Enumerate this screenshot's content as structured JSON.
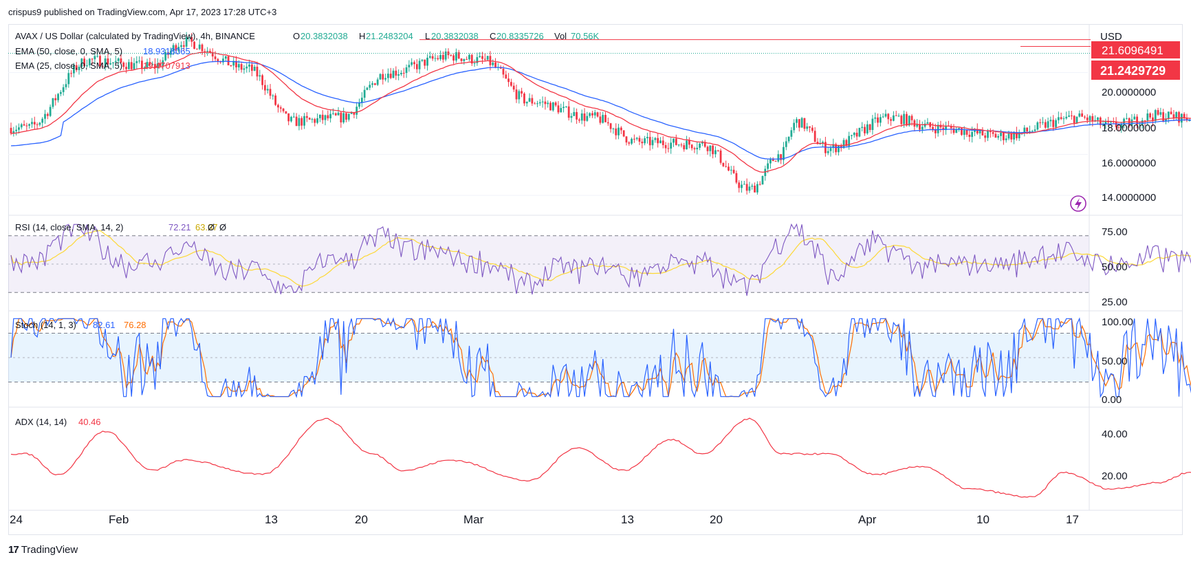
{
  "attribution": "crispus9 published on TradingView.com, Apr 17, 2023 17:28 UTC+3",
  "brand": {
    "logo": "17",
    "name": "TradingView"
  },
  "colors": {
    "up": "#22ab94",
    "down": "#f23645",
    "ema50": "#2962ff",
    "ema25": "#f23645",
    "rsi": "#7e57c2",
    "rsi_ma": "#fdd835",
    "stoch_k": "#2962ff",
    "stoch_d": "#ff6d00",
    "adx": "#f23645",
    "grid": "#f0f3fa"
  },
  "chart_data": [
    {
      "type": "candlestick",
      "title": "AVAX / US Dollar (calculated by TradingView), 4h, BINANCE",
      "ohlc": {
        "O_label": "O",
        "O": "20.3832038",
        "H_label": "H",
        "H": "21.2483204",
        "L_label": "L",
        "L": "20.3832038",
        "C_label": "C",
        "C": "20.8335726",
        "Vol_label": "Vol",
        "Vol": "70.56K"
      },
      "currency": "USD",
      "ylim": [
        13.2,
        22.2
      ],
      "yticks": [
        "20.0000000",
        "18.0000000",
        "16.0000000",
        "14.0000000"
      ],
      "price_labels": {
        "high_line": "21.6096491",
        "last": "21.2429729"
      },
      "x_ticks": [
        "24",
        "Feb",
        "13",
        "20",
        "Mar",
        "13",
        "20",
        "Apr",
        "10",
        "17"
      ],
      "series": [
        {
          "name": "EMA (50, close, 0, SMA, 5)",
          "value": "18.9318065"
        },
        {
          "name": "EMA (25, close, 0, SMA, 5)",
          "value": "19.4707913"
        }
      ],
      "key_points": [
        {
          "x": "Jan 24",
          "y": 17.3
        },
        {
          "x": "Jan 28",
          "y": 20.6
        },
        {
          "x": "Feb 1",
          "y": 20.3
        },
        {
          "x": "Feb 3",
          "y": 21.5
        },
        {
          "x": "Feb 7",
          "y": 20.2
        },
        {
          "x": "Feb 10",
          "y": 17.6
        },
        {
          "x": "Feb 13",
          "y": 17.8
        },
        {
          "x": "Feb 16",
          "y": 20.0
        },
        {
          "x": "Feb 20",
          "y": 20.8
        },
        {
          "x": "Feb 22",
          "y": 20.6
        },
        {
          "x": "Feb 25",
          "y": 18.6
        },
        {
          "x": "Mar 1",
          "y": 17.8
        },
        {
          "x": "Mar 4",
          "y": 16.6
        },
        {
          "x": "Mar 8",
          "y": 16.5
        },
        {
          "x": "Mar 11",
          "y": 14.3
        },
        {
          "x": "Mar 13",
          "y": 16.0
        },
        {
          "x": "Mar 14",
          "y": 17.6
        },
        {
          "x": "Mar 16",
          "y": 16.3
        },
        {
          "x": "Mar 20",
          "y": 17.8
        },
        {
          "x": "Mar 23",
          "y": 17.3
        },
        {
          "x": "Mar 27",
          "y": 16.9
        },
        {
          "x": "Apr 1",
          "y": 17.8
        },
        {
          "x": "Apr 3",
          "y": 17.4
        },
        {
          "x": "Apr 6",
          "y": 17.9
        },
        {
          "x": "Apr 10",
          "y": 17.6
        },
        {
          "x": "Apr 12",
          "y": 18.6
        },
        {
          "x": "Apr 15",
          "y": 19.6
        },
        {
          "x": "Apr 17",
          "y": 20.9
        }
      ]
    },
    {
      "type": "line",
      "title": "RSI (14, close, SMA, 14, 2)",
      "series": [
        {
          "name": "RSI",
          "value": "72.21"
        },
        {
          "name": "RSI-based MA",
          "value": "63.37"
        }
      ],
      "extra": [
        "Ø",
        "Ø"
      ],
      "ylim": [
        18,
        82
      ],
      "yticks": [
        "75.00",
        "50.00",
        "25.00"
      ],
      "bands": [
        70,
        50,
        30
      ]
    },
    {
      "type": "line",
      "title": "Stoch (14, 1, 3)",
      "series": [
        {
          "name": "%K",
          "value": "82.61"
        },
        {
          "name": "%D",
          "value": "76.28"
        }
      ],
      "ylim": [
        -5,
        105
      ],
      "yticks": [
        "100.00",
        "50.00",
        "0.00"
      ],
      "bands": [
        80,
        50,
        20
      ]
    },
    {
      "type": "line",
      "title": "ADX (14, 14)",
      "series": [
        {
          "name": "ADX",
          "value": "40.46"
        }
      ],
      "ylim": [
        5,
        50
      ],
      "yticks": [
        "40.00",
        "20.00"
      ],
      "key_points": [
        {
          "x": "Jan 24",
          "y": 30
        },
        {
          "x": "Jan 26",
          "y": 20
        },
        {
          "x": "Jan 29",
          "y": 41
        },
        {
          "x": "Feb 1",
          "y": 22
        },
        {
          "x": "Feb 3",
          "y": 27
        },
        {
          "x": "Feb 8",
          "y": 20
        },
        {
          "x": "Feb 12",
          "y": 47
        },
        {
          "x": "Feb 15",
          "y": 30
        },
        {
          "x": "Feb 17",
          "y": 22
        },
        {
          "x": "Feb 20",
          "y": 27
        },
        {
          "x": "Feb 25",
          "y": 17
        },
        {
          "x": "Feb 28",
          "y": 33
        },
        {
          "x": "Mar 3",
          "y": 22
        },
        {
          "x": "Mar 6",
          "y": 37
        },
        {
          "x": "Mar 8",
          "y": 30
        },
        {
          "x": "Mar 11",
          "y": 47
        },
        {
          "x": "Mar 13",
          "y": 30
        },
        {
          "x": "Mar 16",
          "y": 30
        },
        {
          "x": "Mar 19",
          "y": 20
        },
        {
          "x": "Mar 22",
          "y": 24
        },
        {
          "x": "Mar 25",
          "y": 13
        },
        {
          "x": "Mar 29",
          "y": 9
        },
        {
          "x": "Mar 31",
          "y": 21
        },
        {
          "x": "Apr 3",
          "y": 13
        },
        {
          "x": "Apr 6",
          "y": 16
        },
        {
          "x": "Apr 8",
          "y": 21
        },
        {
          "x": "Apr 11",
          "y": 15
        },
        {
          "x": "Apr 13",
          "y": 21
        },
        {
          "x": "Apr 15",
          "y": 35
        },
        {
          "x": "Apr 17",
          "y": 40.5
        }
      ]
    }
  ]
}
